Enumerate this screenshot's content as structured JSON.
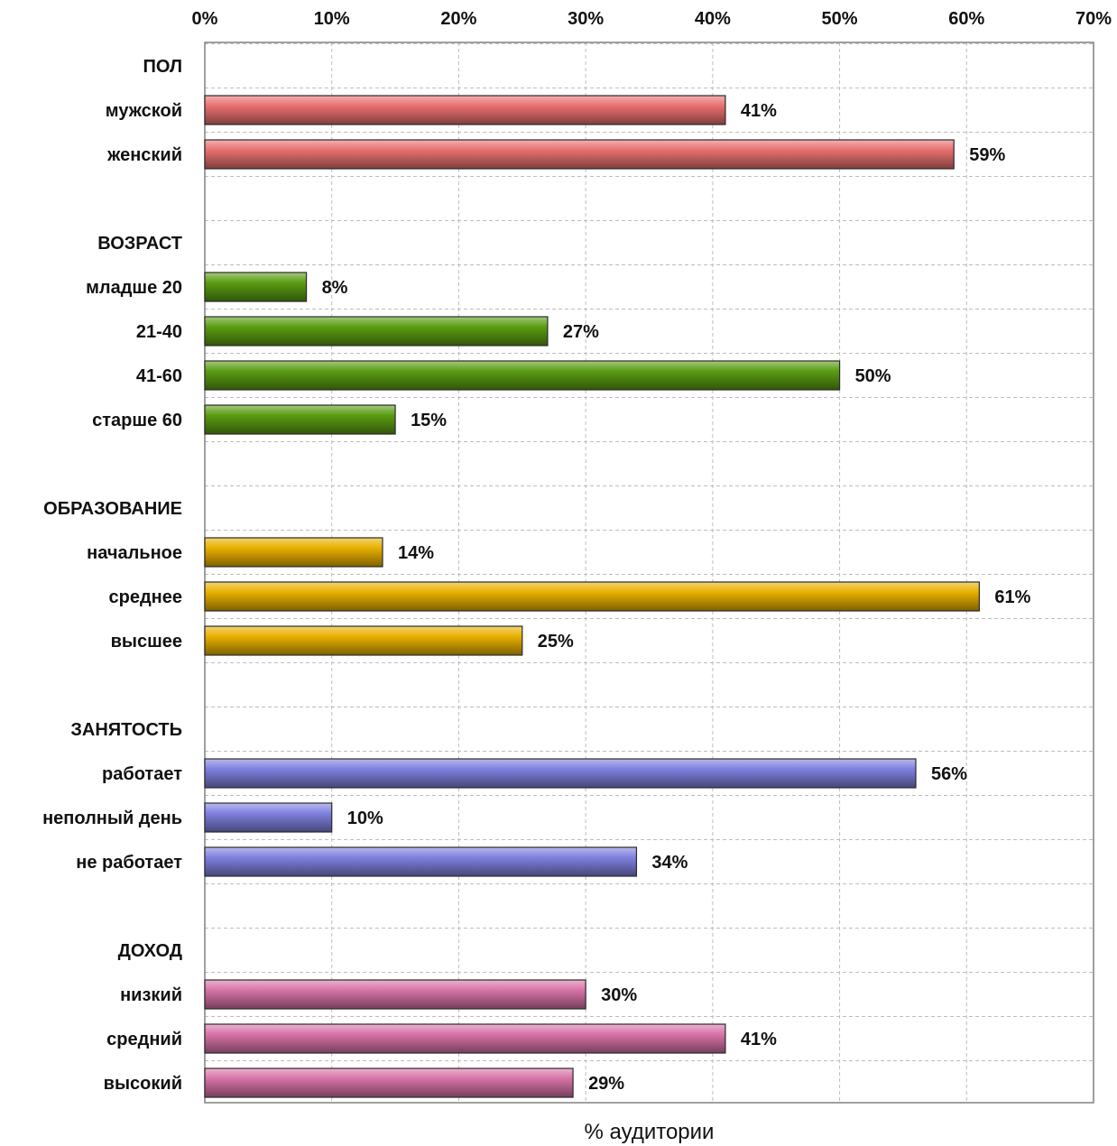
{
  "chart_data": {
    "type": "bar",
    "orientation": "horizontal",
    "xlabel": "% аудитории",
    "xlim": [
      0,
      70
    ],
    "x_tick_labels": [
      "0%",
      "10%",
      "20%",
      "30%",
      "40%",
      "50%",
      "60%",
      "70%"
    ],
    "x_axis_position": "top",
    "grid": true,
    "legend": "none",
    "value_suffix": "%",
    "groups": [
      {
        "name": "ПОЛ",
        "color": "#e8706f",
        "categories": [
          "мужской",
          "женский"
        ],
        "values": [
          41,
          59
        ]
      },
      {
        "name": "ВОЗРАСТ",
        "color": "#5a9c12",
        "categories": [
          "младше 20",
          "21-40",
          "41-60",
          "старше 60"
        ],
        "values": [
          8,
          27,
          50,
          15
        ]
      },
      {
        "name": "ОБРАЗОВАНИЕ",
        "color": "#e8b000",
        "categories": [
          "начальное",
          "среднее",
          "высшее"
        ],
        "values": [
          14,
          61,
          25
        ]
      },
      {
        "name": "ЗАНЯТОСТЬ",
        "color": "#8080e0",
        "categories": [
          "работает",
          "неполный день",
          "не работает"
        ],
        "values": [
          56,
          10,
          34
        ]
      },
      {
        "name": "ДОХОД",
        "color": "#d873a8",
        "categories": [
          "низкий",
          "средний",
          "высокий"
        ],
        "values": [
          30,
          41,
          29
        ]
      }
    ]
  }
}
